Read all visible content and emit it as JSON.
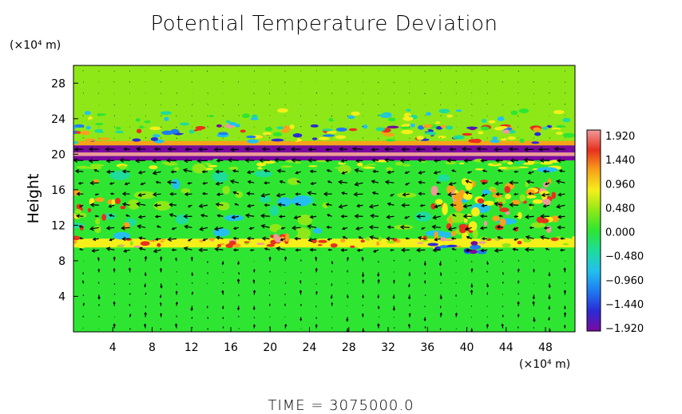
{
  "chart_data": {
    "type": "heatmap",
    "title": "Potential Temperature Deviation",
    "xunit": "(×10⁴ m)",
    "yunit": "(×10⁴ m)",
    "ylabel": "Height",
    "xlabel": "",
    "x_ticks": [
      4,
      8,
      12,
      16,
      20,
      24,
      28,
      32,
      36,
      40,
      44,
      48
    ],
    "y_ticks": [
      4,
      8,
      12,
      16,
      20,
      24,
      28
    ],
    "xlim": [
      0,
      51
    ],
    "ylim": [
      0,
      30
    ],
    "grid": false,
    "overlay": "wind vector arrows",
    "colorbar": {
      "labels": [
        "1.920",
        "1.440",
        "0.960",
        "0.480",
        "0.000",
        "−0.480",
        "−0.960",
        "−1.440",
        "−1.920"
      ],
      "range": [
        -1.92,
        1.92
      ],
      "colors": [
        "#7a0a9e",
        "#2b2bd6",
        "#1e7cf0",
        "#23c0ef",
        "#1edc9a",
        "#2ee632",
        "#8ee818",
        "#f5ef1a",
        "#f7a21a",
        "#e7311e",
        "#ef9a9a"
      ]
    },
    "bands": [
      {
        "y": [
          0,
          9.5
        ],
        "value": 0.0
      },
      {
        "y": [
          9.5,
          10.5
        ],
        "value": 0.7
      },
      {
        "y": [
          10.5,
          19
        ],
        "value": -0.1
      },
      {
        "y": [
          19.3,
          19.8
        ],
        "value": -1.9
      },
      {
        "y": [
          19.8,
          20.2
        ],
        "value": 1.9
      },
      {
        "y": [
          20.2,
          21
        ],
        "value": -1.9
      },
      {
        "y": [
          21,
          21.5
        ],
        "value": 1.3
      },
      {
        "y": [
          21.5,
          23
        ],
        "value": 0.3
      },
      {
        "y": [
          23,
          30
        ],
        "value": 0.2
      }
    ]
  },
  "footer": {
    "time_text": "TIME = 3075000.0"
  }
}
